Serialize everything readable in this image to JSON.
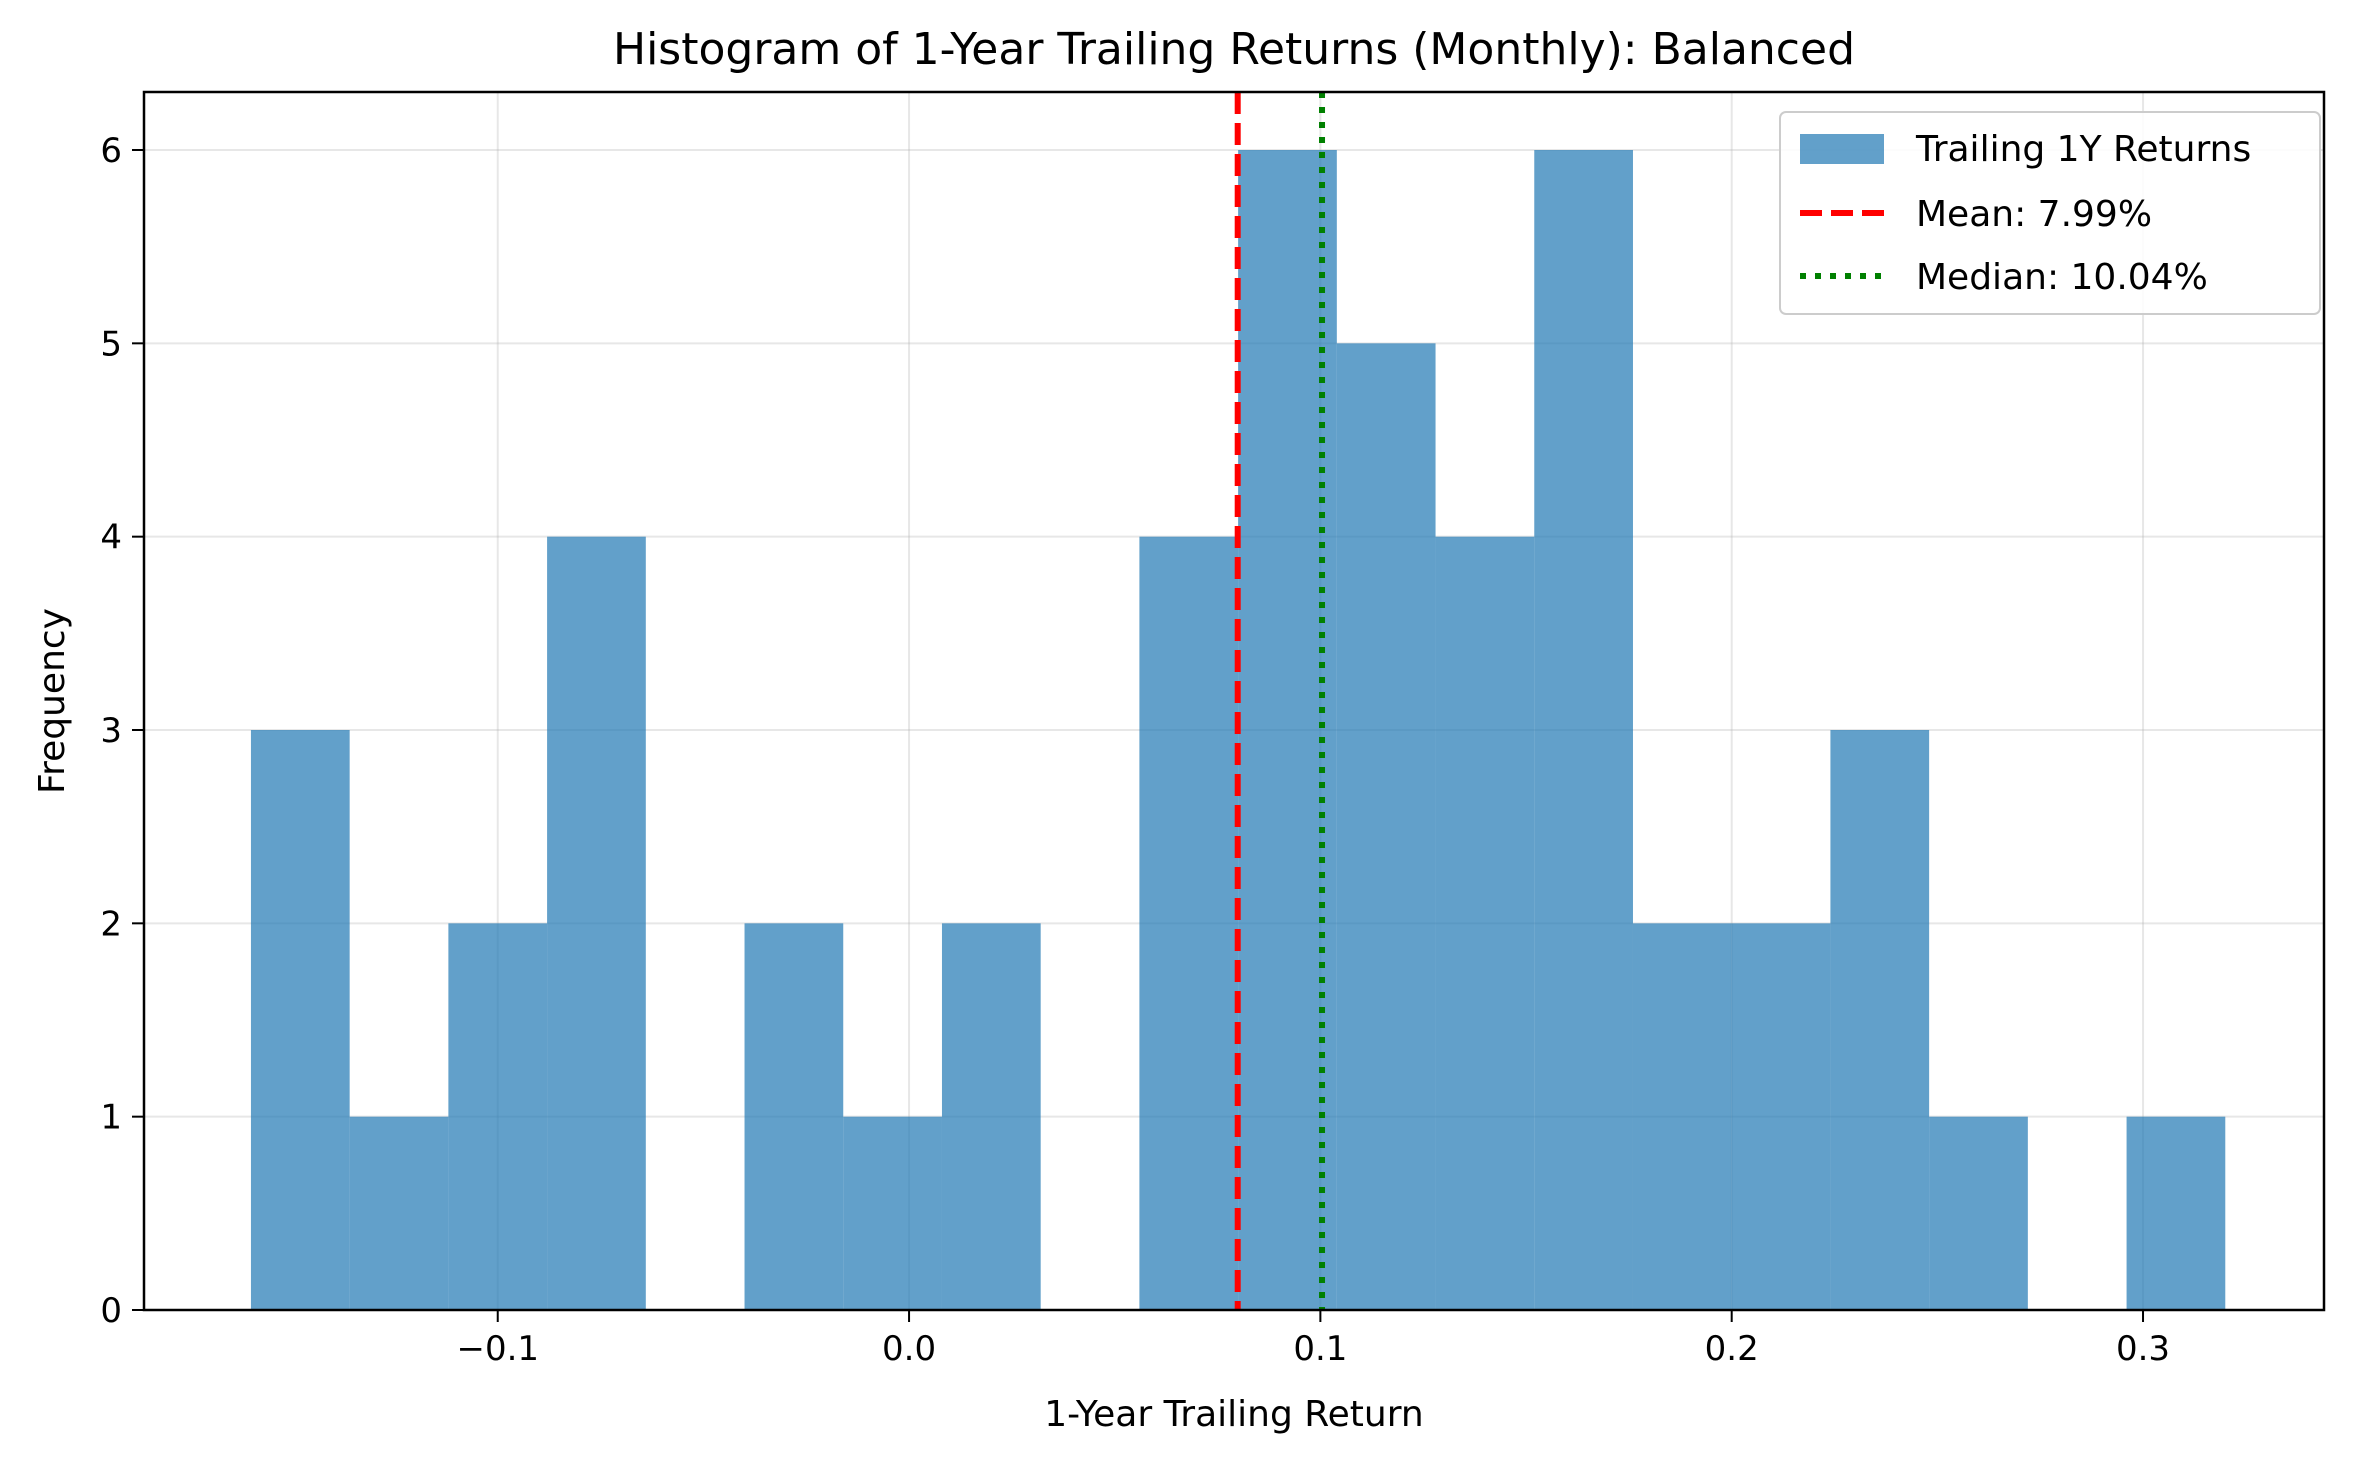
{
  "chart_data": {
    "type": "bar",
    "title": "Histogram of 1-Year Trailing Returns (Monthly): Balanced",
    "xlabel": "1-Year Trailing Return",
    "ylabel": "Frequency",
    "xlim": [
      -0.186,
      0.344
    ],
    "ylim": [
      0,
      6.3
    ],
    "xticks": [
      -0.1,
      0.0,
      0.1,
      0.2,
      0.3
    ],
    "xtick_labels": [
      "−0.1",
      "0.0",
      "0.1",
      "0.2",
      "0.3"
    ],
    "yticks": [
      0,
      1,
      2,
      3,
      4,
      5,
      6
    ],
    "ytick_labels": [
      "0",
      "1",
      "2",
      "3",
      "4",
      "5",
      "6"
    ],
    "grid": true,
    "bin_edges": [
      -0.16,
      -0.136,
      -0.112,
      -0.088,
      -0.064,
      -0.04,
      -0.016,
      0.008,
      0.032,
      0.056,
      0.08,
      0.104,
      0.128,
      0.152,
      0.176,
      0.2,
      0.224,
      0.248,
      0.272,
      0.296,
      0.32
    ],
    "counts": [
      3,
      1,
      2,
      4,
      0,
      2,
      1,
      2,
      0,
      4,
      6,
      5,
      4,
      6,
      2,
      2,
      3,
      1,
      0,
      1
    ],
    "bar_color": "#1f77b4",
    "mean": 0.0799,
    "median": 0.1004,
    "mean_color": "#ff0000",
    "median_color": "#008000",
    "legend_position": "upper right",
    "legend": {
      "histogram": "Trailing 1Y Returns",
      "mean": "Mean: 7.99%",
      "median": "Median: 10.04%"
    }
  }
}
